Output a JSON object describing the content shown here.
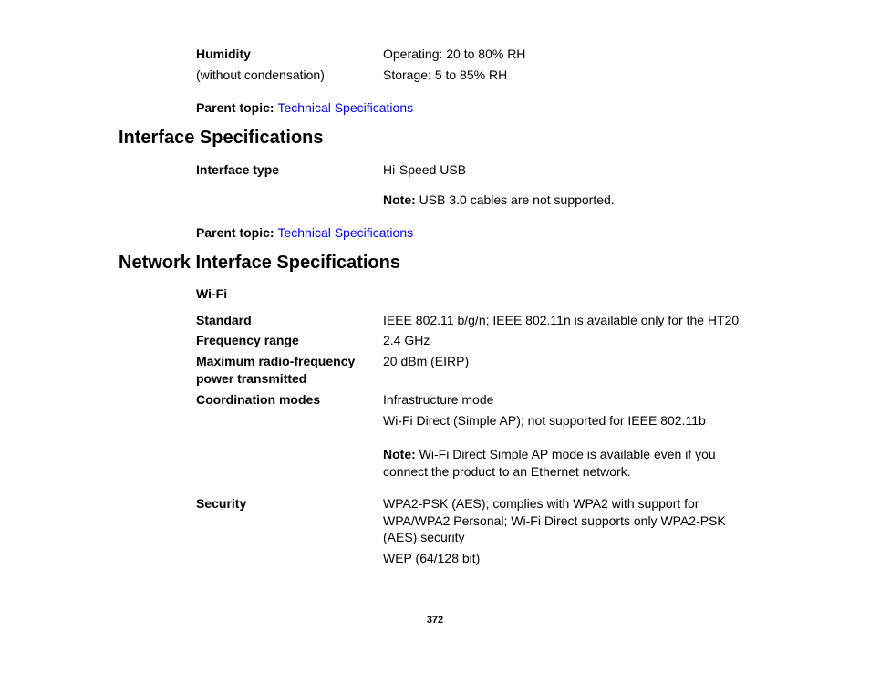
{
  "humidity": {
    "label": "Humidity",
    "sublabel": "(without condensation)",
    "value1": "Operating: 20 to 80% RH",
    "value2": "Storage: 5 to 85% RH"
  },
  "parent_topic": {
    "label": "Parent topic: ",
    "link": "Technical Specifications"
  },
  "interface": {
    "heading": "Interface Specifications",
    "type_label": "Interface type",
    "type_value": "Hi-Speed USB",
    "note_prefix": "Note: ",
    "note_text": "USB 3.0 cables are not supported."
  },
  "network": {
    "heading": "Network Interface Specifications",
    "wifi_label": "Wi-Fi",
    "standard_label": "Standard",
    "standard_value": "IEEE 802.11 b/g/n; IEEE 802.11n is available only for the HT20",
    "freq_label": "Frequency range",
    "freq_value": "2.4 GHz",
    "power_label": "Maximum radio-frequency power transmitted",
    "power_value": "20 dBm (EIRP)",
    "coord_label": "Coordination modes",
    "coord_value1": "Infrastructure mode",
    "coord_value2": "Wi-Fi Direct (Simple AP); not supported for IEEE 802.11b",
    "coord_note_prefix": "Note: ",
    "coord_note_text": "Wi-Fi Direct Simple AP mode is available even if you connect the product to an Ethernet network.",
    "security_label": "Security",
    "security_value1": "WPA2-PSK (AES); complies with WPA2 with support for WPA/WPA2 Personal; Wi-Fi Direct supports only WPA2-PSK (AES) security",
    "security_value2": "WEP (64/128 bit)"
  },
  "page_number": "372"
}
